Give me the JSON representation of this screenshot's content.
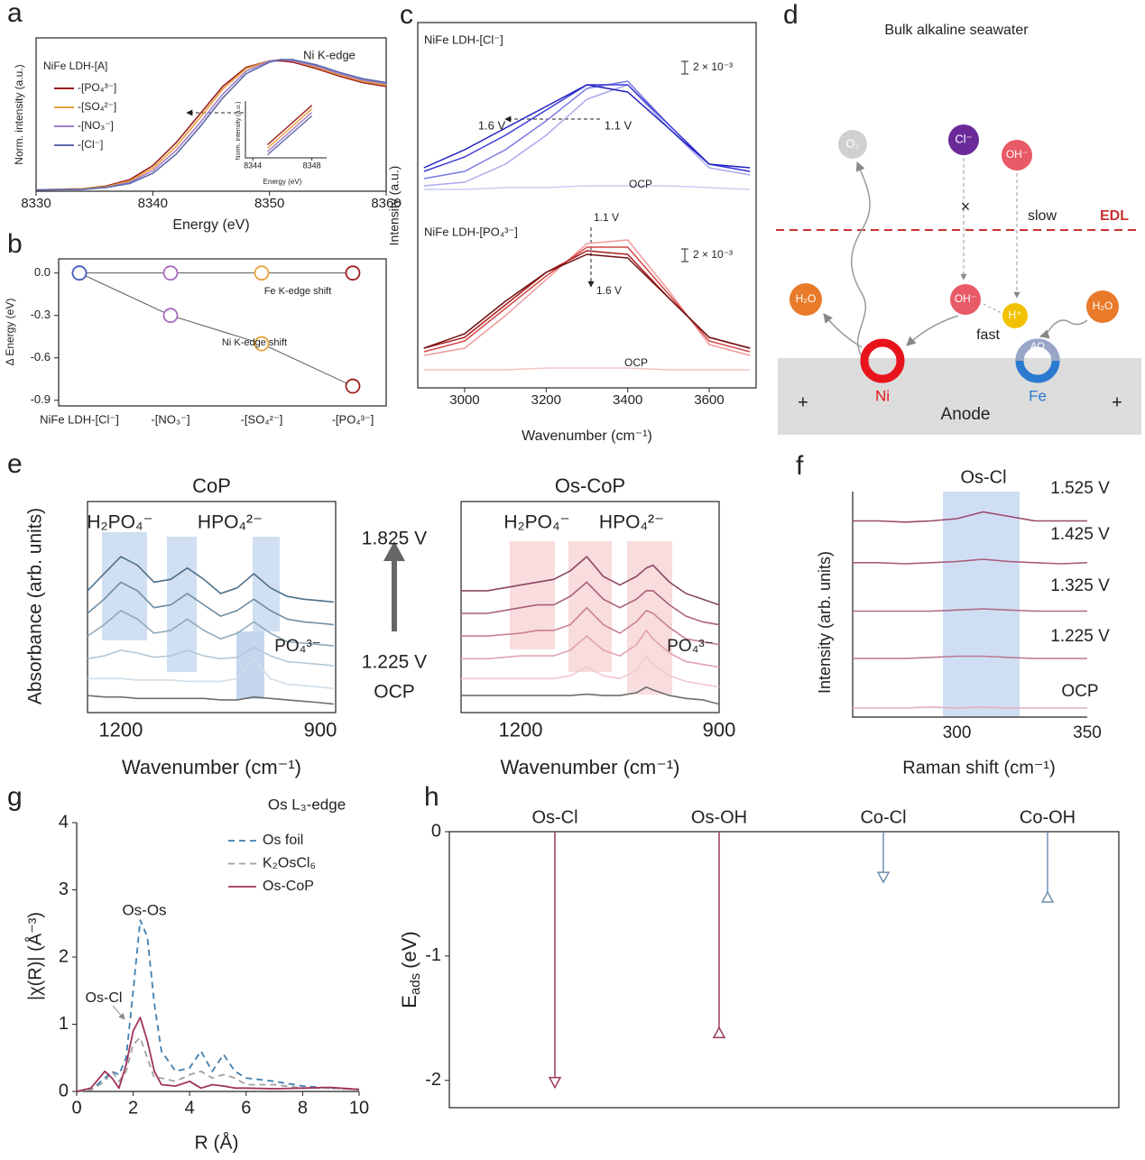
{
  "chart_data": [
    {
      "type": "line",
      "panel": "a",
      "xlabel": "Energy (eV)",
      "ylabel": "Norm. intensity (a.u.)",
      "annotations": [
        "NiFe LDH-[A]",
        "Ni K-edge"
      ],
      "xlim": [
        8330,
        8360
      ],
      "xticks": [
        8330,
        8340,
        8350,
        8360
      ],
      "ylim": [
        0,
        1.2
      ],
      "x": [
        8330,
        8334,
        8336,
        8338,
        8340,
        8342,
        8344,
        8346,
        8348,
        8350,
        8351,
        8352,
        8354,
        8356,
        8358,
        8360
      ],
      "series": [
        {
          "name": "-[PO₄³⁻]",
          "color": "#9b1c1c",
          "values": [
            0.01,
            0.02,
            0.04,
            0.09,
            0.2,
            0.38,
            0.6,
            0.82,
            0.97,
            1.02,
            1.02,
            1.01,
            0.96,
            0.9,
            0.85,
            0.82
          ]
        },
        {
          "name": "-[SO₄²⁻]",
          "color": "#e8a23a",
          "values": [
            0.01,
            0.02,
            0.035,
            0.08,
            0.18,
            0.35,
            0.57,
            0.8,
            0.96,
            1.02,
            1.03,
            1.02,
            0.97,
            0.91,
            0.86,
            0.83
          ]
        },
        {
          "name": "-[NO₃⁻]",
          "color": "#a77bc7",
          "values": [
            0.01,
            0.015,
            0.03,
            0.07,
            0.16,
            0.32,
            0.53,
            0.76,
            0.94,
            1.02,
            1.03,
            1.02,
            0.98,
            0.92,
            0.87,
            0.84
          ]
        },
        {
          "name": "-[Cl⁻]",
          "color": "#5a6aa8",
          "values": [
            0.01,
            0.015,
            0.03,
            0.06,
            0.14,
            0.29,
            0.5,
            0.73,
            0.92,
            1.01,
            1.03,
            1.03,
            0.99,
            0.93,
            0.88,
            0.85
          ]
        }
      ],
      "inset": {
        "xlabel": "Energy (eV)",
        "ylabel": "Norm. intensity (a.u.)",
        "xlim": [
          8343.5,
          8349
        ],
        "xticks": [
          8344,
          8348
        ],
        "ylim": [
          -0.2,
          1.1
        ],
        "x": [
          8345,
          8348
        ],
        "series": [
          {
            "color": "#9b1c1c",
            "values": [
              0.1,
              1.0
            ]
          },
          {
            "color": "#e8a23a",
            "values": [
              0.02,
              0.92
            ]
          },
          {
            "color": "#a77bc7",
            "values": [
              -0.06,
              0.84
            ]
          },
          {
            "color": "#5a6aa8",
            "values": [
              -0.13,
              0.76
            ]
          }
        ]
      }
    },
    {
      "type": "line",
      "panel": "b",
      "ylabel": "Δ Energy (eV)",
      "annotations": [
        "Fe K-edge shift",
        "Ni K-edge shift"
      ],
      "categories": [
        "NiFe LDH-[Cl⁻]",
        "-[NO₃⁻]",
        "-[SO₄²⁻]",
        "-[PO₄³⁻]"
      ],
      "ylim": [
        -0.94,
        0.1
      ],
      "yticks": [
        {
          "value": 0,
          "label": "0.0"
        },
        -0.3,
        -0.6,
        -0.9
      ],
      "point_colors": [
        "#4a5fbf",
        "#a86ac0",
        "#e8a23a",
        "#a02020"
      ],
      "series": [
        {
          "color": "#555555",
          "values": [
            0,
            0,
            0,
            0
          ]
        },
        {
          "color": "#555555",
          "values": [
            0,
            -0.3,
            -0.5,
            -0.8
          ]
        }
      ]
    },
    {
      "type": "line",
      "panel": "c",
      "xlabel": "Wavenumber (cm⁻¹)",
      "ylabel": "Intensity (a.u.)",
      "annotations": [
        "NiFe LDH-[Cl⁻]",
        "2 × 10⁻³",
        "1.6 V",
        "1.1 V",
        "OCP",
        "NiFe LDH-[PO₄³⁻]",
        "2 × 10⁻³",
        "1.1 V",
        "1.6 V",
        "OCP"
      ],
      "xlim": [
        2885,
        3715
      ],
      "xticks": [
        3000,
        3200,
        3400,
        3600
      ],
      "ylim": [
        0,
        100
      ],
      "x": [
        2900,
        3000,
        3100,
        3200,
        3300,
        3400,
        3500,
        3600,
        3700
      ],
      "series": [
        {
          "color": "#ccccf2",
          "values": [
            55,
            55,
            55.5,
            55.5,
            56,
            56,
            56,
            55.5,
            55
          ]
        },
        {
          "color": "#aaaaee",
          "values": [
            56,
            57,
            62,
            70,
            80,
            84,
            72,
            61,
            59
          ]
        },
        {
          "color": "#7a7ae2",
          "values": [
            58,
            60,
            66,
            74,
            83,
            85,
            73,
            62,
            60
          ]
        },
        {
          "color": "#3b3bd6",
          "values": [
            60,
            64,
            70,
            77,
            84,
            84,
            73,
            62,
            60
          ]
        },
        {
          "color": "#1f1fc0",
          "values": [
            61,
            66,
            72,
            78,
            84,
            82,
            72,
            62,
            61
          ]
        },
        {
          "color": "#f5c4c4",
          "values": [
            5,
            5,
            5,
            5.5,
            5.5,
            5.5,
            5,
            5,
            5
          ]
        },
        {
          "color": "#f09a9a",
          "values": [
            9,
            11,
            20,
            30,
            40,
            41,
            27,
            12,
            9
          ]
        },
        {
          "color": "#d44848",
          "values": [
            10,
            13,
            22,
            31,
            39,
            39,
            26,
            13,
            10
          ]
        },
        {
          "color": "#a81e1e",
          "values": [
            11,
            14,
            23,
            32,
            38,
            37,
            25,
            14,
            11
          ]
        },
        {
          "color": "#701010",
          "values": [
            11,
            15,
            24,
            32,
            37,
            36,
            25,
            14,
            11
          ]
        }
      ]
    },
    {
      "type": "line",
      "panel": "e",
      "title": "CoP",
      "xlabel": "Wavenumber (cm⁻¹)",
      "ylabel": "Absorbance (arb. units)",
      "annotations": [
        "H₂PO₄⁻",
        "HPO₄²⁻",
        "PO₄³⁻"
      ],
      "potentials": [
        "1.825 V",
        "1.225 V",
        "OCP"
      ],
      "xlim": [
        1250,
        877
      ],
      "xticks": [
        1200,
        900
      ],
      "ylim": [
        0,
        7
      ],
      "x": [
        1250,
        1225,
        1200,
        1175,
        1150,
        1125,
        1100,
        1075,
        1050,
        1025,
        1000,
        975,
        950,
        925,
        900,
        880
      ],
      "series": [
        {
          "color": "#6e6e6e",
          "values": [
            0.6,
            0.55,
            0.55,
            0.5,
            0.5,
            0.5,
            0.5,
            0.5,
            0.45,
            0.45,
            0.55,
            0.5,
            0.45,
            0.4,
            0.35,
            0.3
          ]
        },
        {
          "color": "#d0dde6",
          "values": [
            1.2,
            1.2,
            1.2,
            1.15,
            1.15,
            1.15,
            1.1,
            1.1,
            1.1,
            1.2,
            1.9,
            1.2,
            1.0,
            0.95,
            0.9,
            0.85
          ]
        },
        {
          "color": "#b4c7d4",
          "values": [
            1.9,
            2.0,
            2.2,
            2.1,
            1.95,
            2.0,
            2.2,
            2.0,
            1.9,
            1.95,
            2.3,
            2.0,
            1.8,
            1.75,
            1.7,
            1.65
          ]
        },
        {
          "color": "#8fa9bb",
          "values": [
            2.7,
            3.1,
            3.6,
            3.3,
            2.8,
            2.9,
            3.3,
            2.9,
            2.6,
            2.8,
            3.2,
            2.8,
            2.5,
            2.45,
            2.4,
            2.35
          ]
        },
        {
          "color": "#6d8ca3",
          "values": [
            3.5,
            4.0,
            4.6,
            4.3,
            3.7,
            3.8,
            4.2,
            3.8,
            3.4,
            3.6,
            4.0,
            3.6,
            3.3,
            3.2,
            3.15,
            3.1
          ]
        },
        {
          "color": "#4d6f89",
          "values": [
            4.3,
            4.9,
            5.5,
            5.2,
            4.6,
            4.7,
            5.1,
            4.7,
            4.2,
            4.4,
            4.9,
            4.4,
            4.1,
            4.0,
            3.95,
            3.9
          ]
        }
      ]
    },
    {
      "type": "line",
      "title": "Os-CoP",
      "xlabel": "Wavenumber (cm⁻¹)",
      "annotations": [
        "H₂PO₄⁻",
        "HPO₄²⁻",
        "PO₄³⁻"
      ],
      "xlim": [
        1290,
        900
      ],
      "xticks": [
        1200,
        900
      ],
      "ylim": [
        0,
        7
      ],
      "x": [
        1290,
        1250,
        1200,
        1175,
        1150,
        1125,
        1100,
        1075,
        1050,
        1025,
        1010,
        1000,
        975,
        950,
        925,
        900
      ],
      "series": [
        {
          "color": "#6e6e6e",
          "values": [
            0.6,
            0.6,
            0.6,
            0.6,
            0.6,
            0.6,
            0.65,
            0.6,
            0.6,
            0.7,
            0.9,
            0.8,
            0.6,
            0.5,
            0.45,
            0.3
          ]
        },
        {
          "color": "#f2c9cf",
          "values": [
            1.2,
            1.2,
            1.2,
            1.2,
            1.2,
            1.3,
            1.6,
            1.3,
            1.2,
            1.5,
            2.0,
            1.7,
            1.3,
            1.1,
            1.0,
            0.9
          ]
        },
        {
          "color": "#e3a3ae",
          "values": [
            1.9,
            1.9,
            2.0,
            2.0,
            2.0,
            2.2,
            2.7,
            2.2,
            2.0,
            2.4,
            2.9,
            2.6,
            2.1,
            1.8,
            1.7,
            1.6
          ]
        },
        {
          "color": "#c98190",
          "values": [
            2.7,
            2.7,
            2.8,
            2.9,
            2.9,
            3.1,
            3.7,
            3.1,
            2.8,
            3.2,
            3.6,
            3.5,
            3.0,
            2.6,
            2.5,
            2.4
          ]
        },
        {
          "color": "#a96177",
          "values": [
            3.5,
            3.5,
            3.7,
            3.8,
            3.8,
            4.1,
            4.6,
            4.0,
            3.7,
            4.0,
            4.3,
            4.3,
            3.8,
            3.4,
            3.2,
            3.1
          ]
        },
        {
          "color": "#8a4560",
          "values": [
            4.3,
            4.3,
            4.5,
            4.6,
            4.7,
            5.0,
            5.5,
            4.8,
            4.5,
            4.8,
            5.1,
            5.2,
            4.6,
            4.2,
            4.0,
            3.8
          ]
        }
      ]
    },
    {
      "type": "line",
      "panel": "f",
      "xlabel": "Raman shift (cm⁻¹)",
      "ylabel": "Intensity (arb. units)",
      "annotations": [
        "Os-Cl",
        "1.525 V",
        "1.425 V",
        "1.325 V",
        "1.225 V",
        "OCP"
      ],
      "xlim": [
        260,
        350
      ],
      "xticks": [
        300,
        350
      ],
      "ylim": [
        0,
        10
      ],
      "x": [
        260,
        270,
        280,
        290,
        300,
        310,
        320,
        330,
        340,
        350
      ],
      "series": [
        {
          "color": "#9a4a6a",
          "values": [
            8.7,
            8.7,
            8.65,
            8.7,
            8.8,
            9.1,
            8.9,
            8.7,
            8.7,
            8.7
          ]
        },
        {
          "color": "#a85a78",
          "values": [
            6.85,
            6.85,
            6.8,
            6.85,
            6.9,
            7.0,
            6.9,
            6.85,
            6.8,
            6.85
          ]
        },
        {
          "color": "#b06a86",
          "values": [
            4.7,
            4.7,
            4.7,
            4.7,
            4.75,
            4.8,
            4.75,
            4.7,
            4.7,
            4.7
          ]
        },
        {
          "color": "#b87a92",
          "values": [
            2.6,
            2.6,
            2.6,
            2.65,
            2.7,
            2.7,
            2.65,
            2.6,
            2.6,
            2.6
          ]
        },
        {
          "color": "#e0b0c0",
          "values": [
            0.4,
            0.4,
            0.4,
            0.45,
            0.4,
            0.45,
            0.4,
            0.4,
            0.4,
            0.4
          ]
        }
      ]
    },
    {
      "type": "line",
      "panel": "g",
      "title": "Os L₃-edge",
      "xlabel": "R (Å)",
      "ylabel": "|χ(R)| (Å⁻³)",
      "annotations": [
        "Os-Os",
        "Os-Cl"
      ],
      "xlim": [
        0,
        10
      ],
      "xticks": [
        0,
        2,
        4,
        6,
        8,
        10
      ],
      "ylim": [
        0,
        4
      ],
      "yticks": [
        0,
        1,
        2,
        3,
        4
      ],
      "x": [
        0,
        0.5,
        1,
        1.25,
        1.5,
        1.75,
        2,
        2.25,
        2.5,
        2.75,
        3,
        3.5,
        4,
        4.4,
        4.8,
        5.2,
        5.6,
        6,
        7,
        8,
        9,
        10
      ],
      "series": [
        {
          "name": "Os foil",
          "color": "#3f7fb0",
          "linestyle": "dashed",
          "values": [
            0,
            0.02,
            0.2,
            0.3,
            0.25,
            0.5,
            1.5,
            2.55,
            2.3,
            1.3,
            0.6,
            0.3,
            0.35,
            0.6,
            0.3,
            0.55,
            0.3,
            0.2,
            0.15,
            0.08,
            0.05,
            0.03
          ]
        },
        {
          "name": "K₂OsCl₆",
          "color": "#a0a0a0",
          "linestyle": "dashed",
          "values": [
            0,
            0.02,
            0.15,
            0.3,
            0.15,
            0.3,
            0.7,
            0.8,
            0.5,
            0.2,
            0.2,
            0.15,
            0.25,
            0.3,
            0.2,
            0.25,
            0.2,
            0.1,
            0.1,
            0.05,
            0.05,
            0.03
          ]
        },
        {
          "name": "Os-CoP",
          "color": "#a0325a",
          "linestyle": "solid",
          "values": [
            0,
            0.05,
            0.3,
            0.2,
            0.05,
            0.4,
            0.9,
            1.1,
            0.75,
            0.3,
            0.1,
            0.08,
            0.15,
            0.05,
            0.1,
            0.08,
            0.05,
            0.05,
            0.04,
            0.05,
            0.06,
            0.03
          ]
        }
      ]
    },
    {
      "type": "stem",
      "panel": "h",
      "ylabel": {
        "symbol": "E",
        "subscript": "ads",
        "unit": "(eV)"
      },
      "categories": [
        "Os-Cl",
        "Os-OH",
        "Co-Cl",
        "Co-OH"
      ],
      "values": [
        -2.05,
        -1.62,
        -0.4,
        -0.53
      ],
      "colors": [
        "#9a3a5a",
        "#9a3a5a",
        "#6c8fb0",
        "#6c8fb0"
      ],
      "markers": [
        "down",
        "up",
        "down",
        "up"
      ],
      "ylim": [
        -2.22,
        0
      ],
      "yticks": [
        0,
        -1,
        -2
      ]
    }
  ],
  "diagram": {
    "panel": "d",
    "title": "Bulk alkaline seawater",
    "species": {
      "o2": "O₂",
      "cl": "Cl⁻",
      "oh_bulk": "OH⁻",
      "oh_surface": "OH⁻",
      "h": "H⁺",
      "h2o_left": "H₂O",
      "h2o_right": "H₂O",
      "ao": "AO"
    },
    "labels": {
      "blocked": "×",
      "slow": "slow",
      "edl": "EDL",
      "fast": "fast",
      "ni": "Ni",
      "fe": "Fe",
      "anode": "Anode",
      "plus_left": "+",
      "plus_right": "+"
    }
  }
}
